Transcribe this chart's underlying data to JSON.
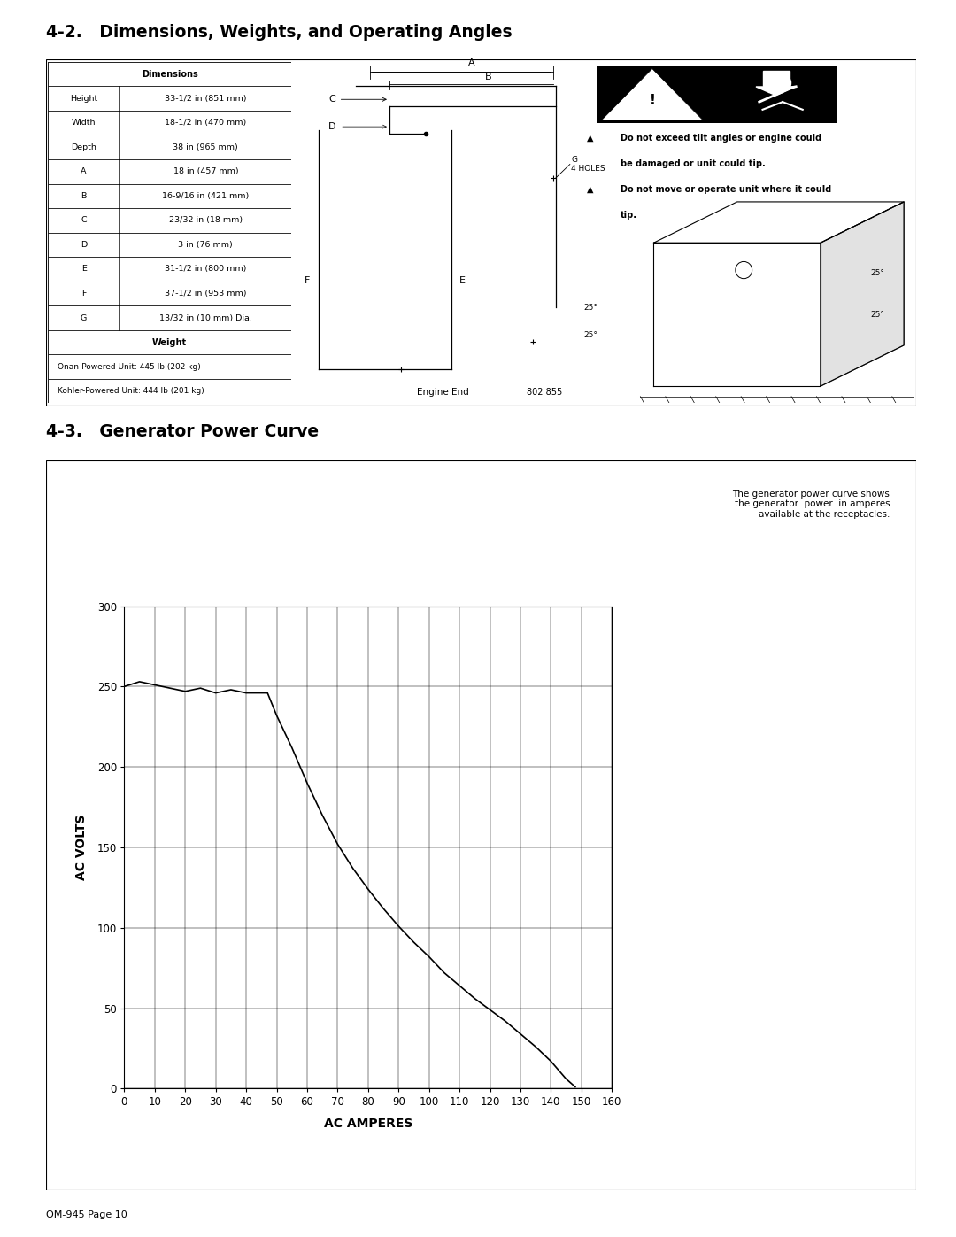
{
  "page_title_top": "4-2.   Dimensions, Weights, and Operating Angles",
  "page_title_bottom": "4-3.   Generator Power Curve",
  "page_footer": "OM-945 Page 10",
  "table_header": "Dimensions",
  "table_rows": [
    [
      "Height",
      "33-1/2 in (851 mm)"
    ],
    [
      "Width",
      "18-1/2 in (470 mm)"
    ],
    [
      "Depth",
      "38 in (965 mm)"
    ],
    [
      "A",
      "18 in (457 mm)"
    ],
    [
      "B",
      "16-9/16 in (421 mm)"
    ],
    [
      "C",
      "23/32 in (18 mm)"
    ],
    [
      "D",
      "3 in (76 mm)"
    ],
    [
      "E",
      "31-1/2 in (800 mm)"
    ],
    [
      "F",
      "37-1/2 in (953 mm)"
    ],
    [
      "G",
      "13/32 in (10 mm) Dia."
    ]
  ],
  "weight_header": "Weight",
  "weight_rows": [
    "Onan-Powered Unit: 445 lb (202 kg)",
    "Kohler-Powered Unit: 444 lb (201 kg)"
  ],
  "warning_text1_line1": "Do not exceed tilt angles or engine could",
  "warning_text1_line2": "be damaged or unit could tip.",
  "warning_text2_line1": "Do not move or operate unit where it could",
  "warning_text2_line2": "tip.",
  "engine_end_label": "Engine End",
  "figure_number": "802 855",
  "generator_annotation_line1": "The generator power curve shows",
  "generator_annotation_line2": "the generator  power  in amperes",
  "generator_annotation_line3": "available at the receptacles.",
  "curve_x": [
    0,
    5,
    10,
    15,
    20,
    25,
    30,
    35,
    40,
    43,
    47,
    50,
    55,
    60,
    65,
    70,
    75,
    80,
    85,
    90,
    95,
    100,
    105,
    110,
    115,
    120,
    125,
    130,
    135,
    140,
    145,
    148
  ],
  "curve_y": [
    250,
    253,
    251,
    249,
    247,
    249,
    246,
    248,
    246,
    246,
    246,
    232,
    212,
    190,
    170,
    152,
    137,
    124,
    112,
    101,
    91,
    82,
    72,
    64,
    56,
    49,
    42,
    34,
    26,
    17,
    6,
    1
  ],
  "xaxis_label": "AC AMPERES",
  "yaxis_label": "AC VOLTS",
  "xlim": [
    0,
    160
  ],
  "ylim": [
    0,
    300
  ],
  "xticks": [
    0,
    10,
    20,
    30,
    40,
    50,
    60,
    70,
    80,
    90,
    100,
    110,
    120,
    130,
    140,
    150,
    160
  ],
  "yticks": [
    0,
    50,
    100,
    150,
    200,
    250,
    300
  ],
  "bg_color": "#ffffff"
}
